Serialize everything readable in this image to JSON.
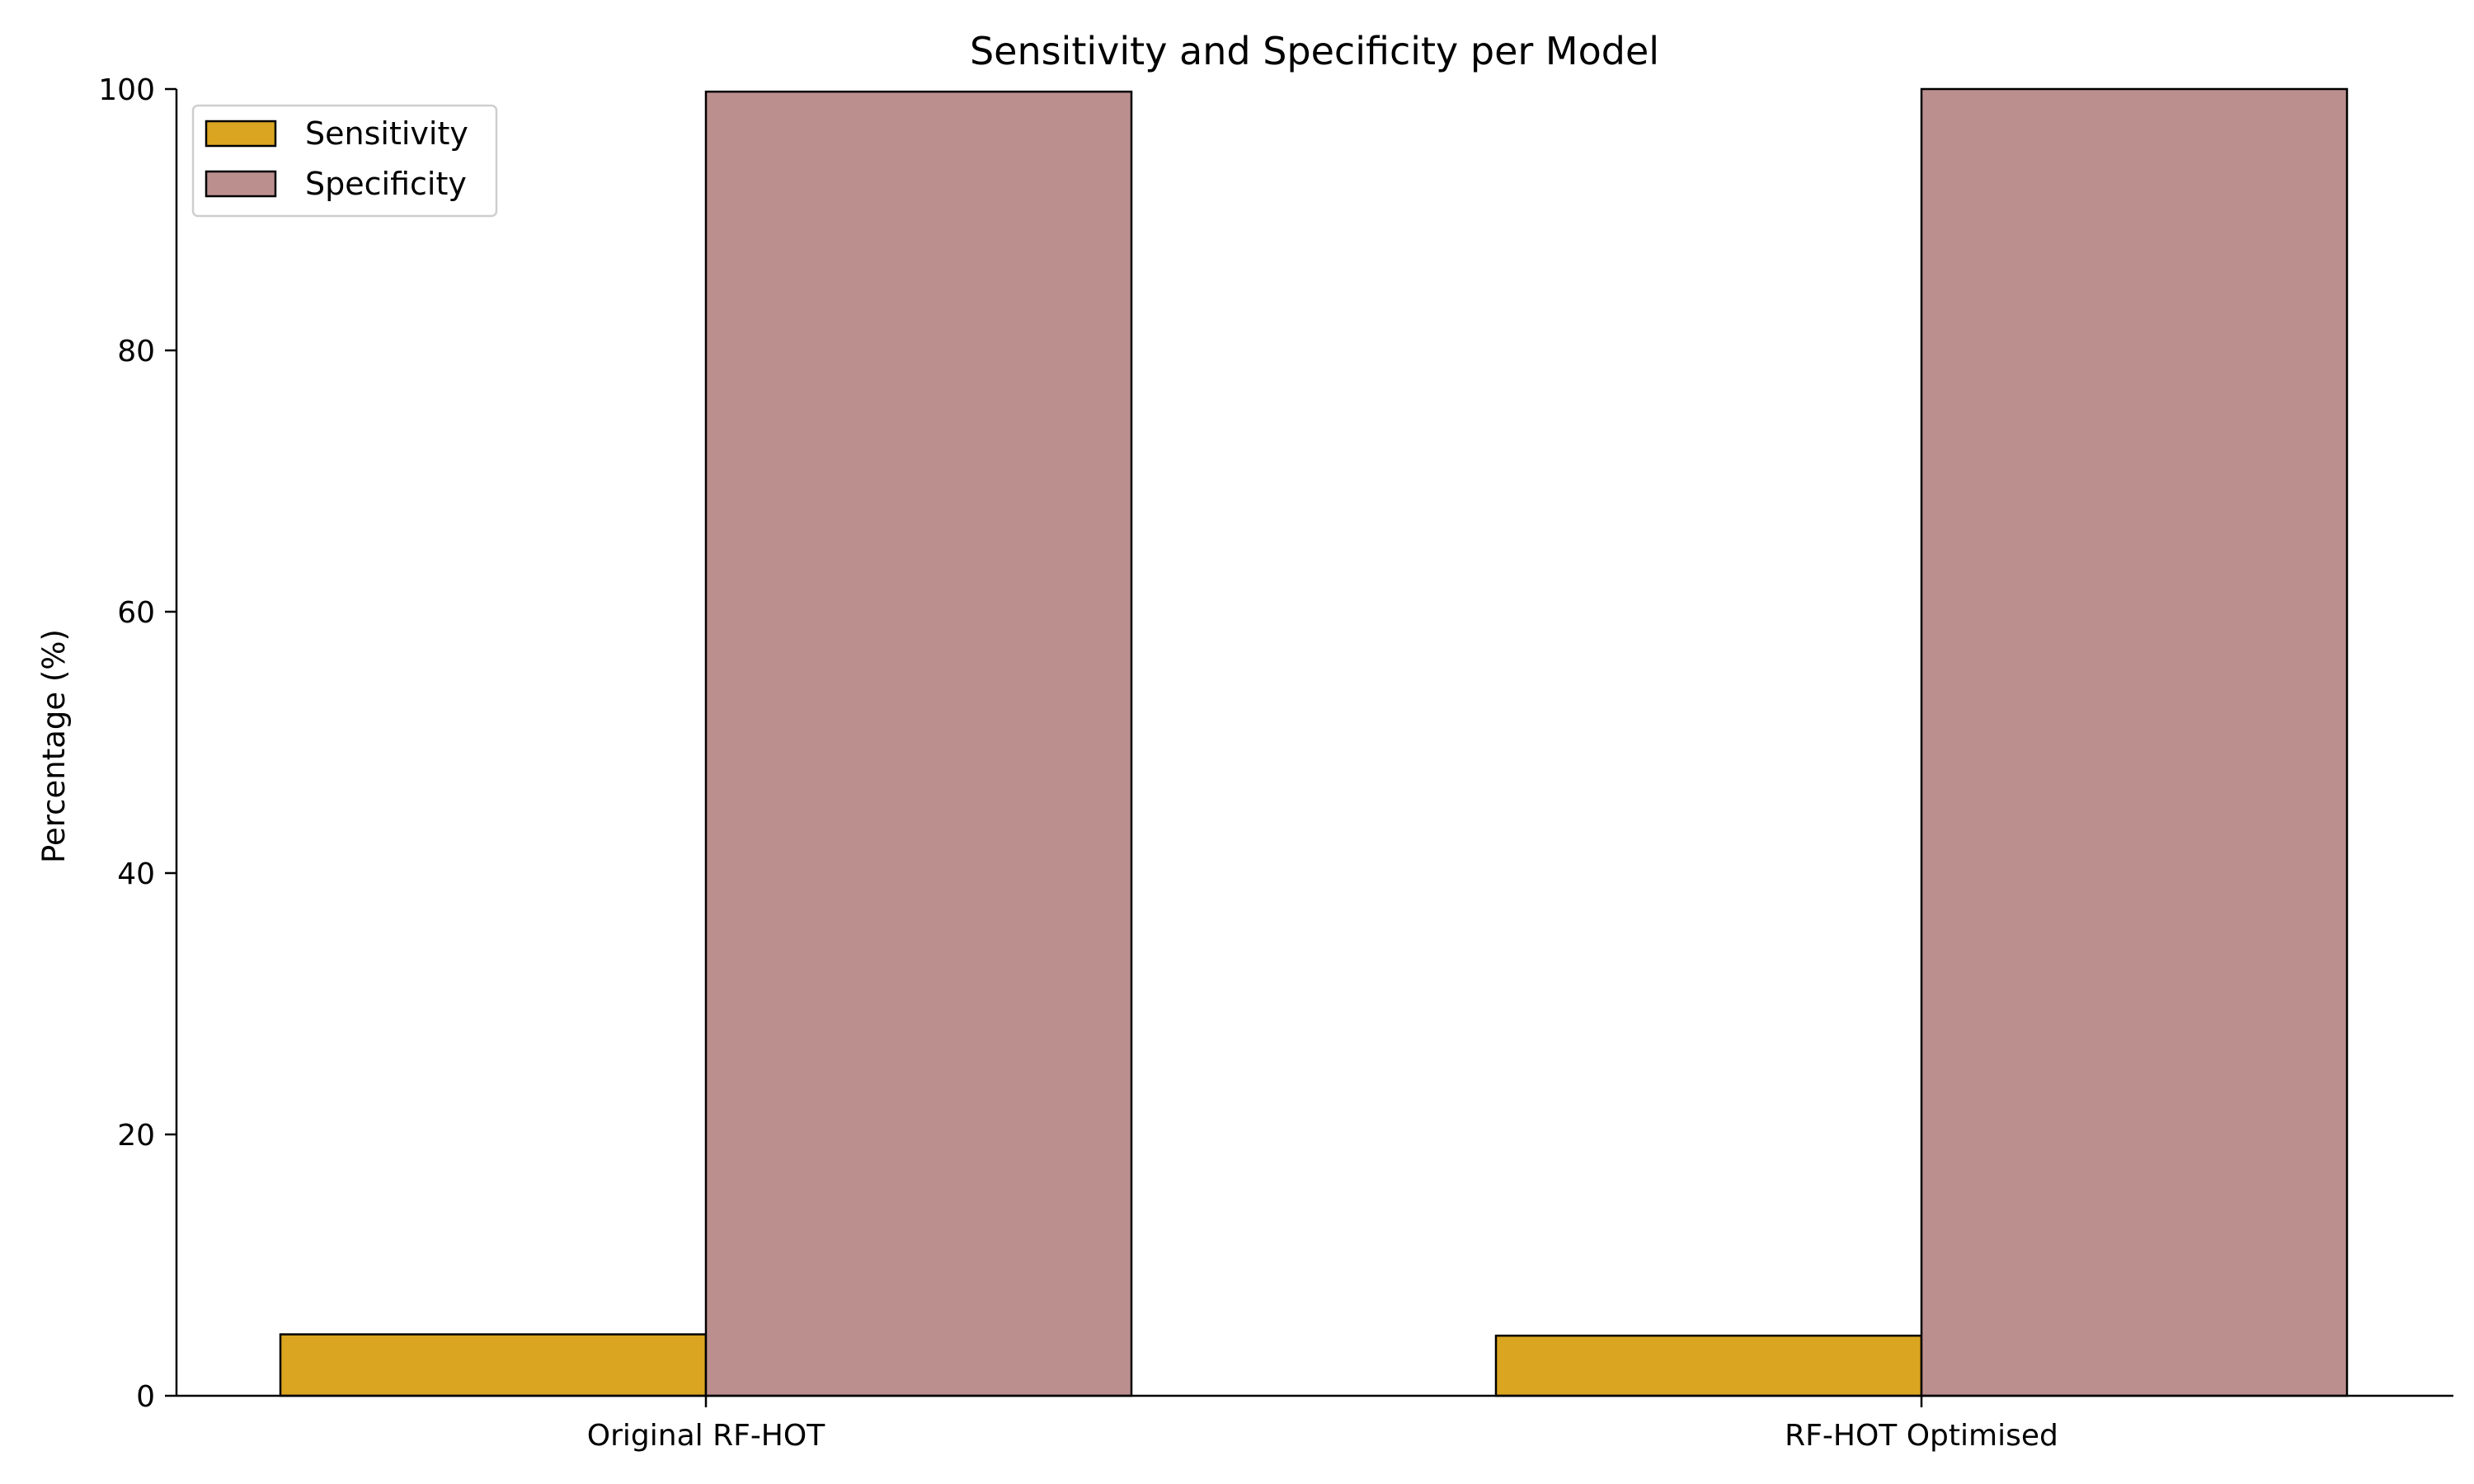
{
  "chart_data": {
    "type": "bar",
    "title": "Sensitivity and Specificity per Model",
    "xlabel": "",
    "ylabel": "Percentage (%)",
    "categories": [
      "Original RF-HOT",
      "RF-HOT Optimised"
    ],
    "series": [
      {
        "name": "Sensitivity",
        "values": [
          4.7,
          4.6
        ],
        "color": "#DAA520"
      },
      {
        "name": "Specificity",
        "values": [
          99.8,
          100.0
        ],
        "color": "#BC8F8F"
      }
    ],
    "ylim": [
      0,
      100
    ],
    "yticks": [
      "0",
      "20",
      "40",
      "60",
      "80",
      "100"
    ],
    "grid": false,
    "legend_position": "top-left"
  }
}
